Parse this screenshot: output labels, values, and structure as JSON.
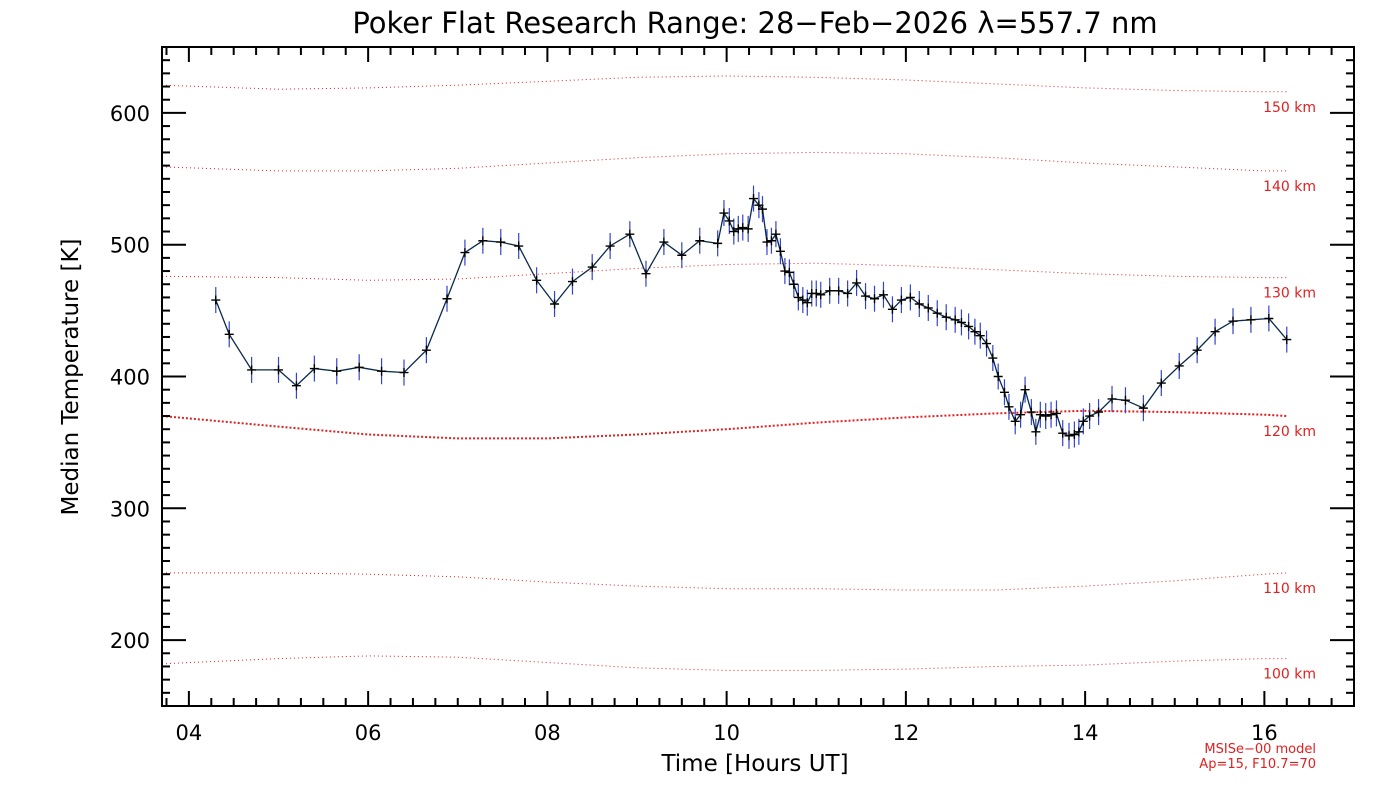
{
  "chart_data": {
    "type": "line",
    "title": "Poker Flat Research Range: 28−Feb−2026 λ=557.7 nm",
    "xlabel": "Time [Hours UT]",
    "ylabel": "Median Temperature [K]",
    "xlim": [
      3.7,
      17.0
    ],
    "ylim": [
      150,
      650
    ],
    "x_ticks": [
      4,
      6,
      8,
      10,
      12,
      14,
      16
    ],
    "x_tick_labels": [
      "04",
      "06",
      "08",
      "10",
      "12",
      "14",
      "16"
    ],
    "y_ticks": [
      200,
      300,
      400,
      500,
      600
    ],
    "y_tick_labels": [
      "200",
      "300",
      "400",
      "500",
      "600"
    ],
    "series": [
      {
        "name": "Median temperature",
        "color": "#0a2a4a",
        "errorbar_color": "#3344cc",
        "x": [
          4.3,
          4.45,
          4.7,
          5.0,
          5.2,
          5.4,
          5.65,
          5.9,
          6.15,
          6.4,
          6.65,
          6.88,
          7.08,
          7.28,
          7.48,
          7.68,
          7.88,
          8.08,
          8.28,
          8.5,
          8.7,
          8.92,
          9.1,
          9.3,
          9.5,
          9.7,
          9.9,
          9.97,
          10.03,
          10.08,
          10.13,
          10.18,
          10.24,
          10.3,
          10.36,
          10.4,
          10.45,
          10.5,
          10.55,
          10.6,
          10.65,
          10.7,
          10.75,
          10.8,
          10.85,
          10.9,
          10.95,
          11.0,
          11.05,
          11.15,
          11.25,
          11.35,
          11.45,
          11.55,
          11.65,
          11.75,
          11.85,
          11.95,
          12.05,
          12.15,
          12.25,
          12.35,
          12.45,
          12.55,
          12.62,
          12.7,
          12.77,
          12.83,
          12.9,
          12.97,
          13.03,
          13.1,
          13.15,
          13.22,
          13.28,
          13.33,
          13.4,
          13.45,
          13.5,
          13.56,
          13.62,
          13.68,
          13.75,
          13.82,
          13.88,
          13.93,
          13.98,
          14.05,
          14.15,
          14.3,
          14.45,
          14.65,
          14.85,
          15.05,
          15.25,
          15.45,
          15.65,
          15.85,
          16.05,
          16.25
        ],
        "y": [
          458,
          432,
          405,
          405,
          393,
          406,
          404,
          407,
          404,
          403,
          420,
          459,
          494,
          503,
          502,
          499,
          473,
          455,
          472,
          483,
          499,
          508,
          478,
          502,
          492,
          503,
          501,
          524,
          518,
          510,
          512,
          513,
          512,
          535,
          530,
          527,
          502,
          503,
          508,
          495,
          480,
          479,
          470,
          460,
          458,
          456,
          463,
          463,
          462,
          465,
          465,
          463,
          471,
          461,
          459,
          462,
          451,
          458,
          460,
          455,
          452,
          448,
          445,
          443,
          441,
          438,
          434,
          431,
          425,
          414,
          400,
          388,
          377,
          366,
          371,
          390,
          373,
          358,
          371,
          370,
          371,
          372,
          357,
          355,
          356,
          358,
          366,
          370,
          373,
          383,
          382,
          376,
          395,
          408,
          420,
          434,
          442,
          443,
          444,
          428
        ]
      }
    ],
    "model_curves": [
      {
        "label": "100 km",
        "x": [
          3.7,
          5.0,
          6.0,
          7.0,
          8.0,
          9.0,
          10.0,
          11.0,
          12.0,
          13.0,
          14.0,
          15.0,
          16.0,
          16.25
        ],
        "y": [
          182,
          186,
          188,
          187,
          183,
          179,
          177,
          177,
          178,
          180,
          181,
          184,
          186,
          186
        ]
      },
      {
        "label": "110 km",
        "x": [
          3.7,
          5.0,
          6.0,
          7.0,
          8.0,
          9.0,
          10.0,
          11.0,
          12.0,
          13.0,
          14.0,
          15.0,
          16.0,
          16.25
        ],
        "y": [
          251,
          251,
          250,
          248,
          244,
          241,
          239,
          239,
          238,
          238,
          241,
          245,
          250,
          251
        ]
      },
      {
        "label": "120 km",
        "x": [
          3.7,
          5.0,
          6.0,
          7.0,
          8.0,
          9.0,
          10.0,
          11.0,
          12.0,
          13.0,
          14.0,
          15.0,
          16.0,
          16.25
        ],
        "y": [
          370,
          362,
          356,
          353,
          353,
          356,
          360,
          365,
          369,
          372,
          374,
          373,
          371,
          370
        ]
      },
      {
        "label": "130 km",
        "x": [
          3.7,
          5.0,
          6.0,
          7.0,
          8.0,
          9.0,
          10.0,
          11.0,
          12.0,
          13.0,
          14.0,
          15.0,
          16.0,
          16.25
        ],
        "y": [
          476,
          475,
          473,
          474,
          478,
          482,
          485,
          486,
          484,
          481,
          478,
          476,
          475,
          475
        ]
      },
      {
        "label": "140 km",
        "x": [
          3.7,
          5.0,
          6.0,
          7.0,
          8.0,
          9.0,
          10.0,
          11.0,
          12.0,
          13.0,
          14.0,
          15.0,
          16.0,
          16.25
        ],
        "y": [
          559,
          556,
          556,
          558,
          562,
          566,
          569,
          570,
          569,
          566,
          562,
          559,
          556,
          556
        ]
      },
      {
        "label": "150 km",
        "x": [
          3.7,
          5.0,
          6.0,
          7.0,
          8.0,
          9.0,
          10.0,
          11.0,
          12.0,
          13.0,
          14.0,
          15.0,
          16.0,
          16.25
        ],
        "y": [
          621,
          618,
          619,
          621,
          624,
          627,
          628,
          627,
          625,
          622,
          619,
          617,
          616,
          616
        ]
      }
    ],
    "model_line_color": "#e02020",
    "model_note": [
      "MSISe−00 model",
      "Ap=15, F10.7=70"
    ],
    "grid": false,
    "legend": "none"
  }
}
